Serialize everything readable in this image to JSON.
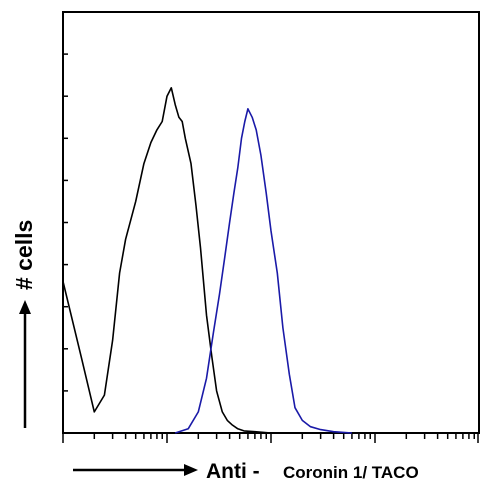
{
  "chart_data": {
    "type": "line",
    "title": "",
    "ylabel": "# cells",
    "xlabel_prefix": "Anti -",
    "xlabel_target": "Coronin 1/ TACO",
    "x_scale": "log",
    "xlim": [
      1,
      10000
    ],
    "ylim": [
      0,
      100
    ],
    "grid": false,
    "legend": "none",
    "series": [
      {
        "color": "#000000",
        "x": [
          1,
          1.5,
          2,
          2.5,
          3,
          3.5,
          4,
          5,
          6,
          7,
          8,
          9,
          10,
          11,
          12,
          13,
          14,
          15,
          17,
          19,
          21,
          24,
          27,
          30,
          34,
          38,
          42,
          48,
          55,
          70,
          100
        ],
        "y": [
          36,
          18,
          5,
          9,
          22,
          38,
          46,
          55,
          64,
          69,
          72,
          74,
          80,
          82,
          78,
          75,
          74,
          70,
          64,
          54,
          44,
          28,
          18,
          10,
          5,
          3,
          2,
          1,
          0.5,
          0.3,
          0
        ]
      },
      {
        "color": "#1a1aa8",
        "x": [
          12,
          16,
          20,
          24,
          28,
          32,
          36,
          40,
          44,
          48,
          52,
          56,
          60,
          66,
          72,
          80,
          90,
          100,
          115,
          130,
          150,
          170,
          200,
          240,
          300,
          400,
          600
        ],
        "y": [
          0,
          1,
          5,
          13,
          24,
          33,
          42,
          50,
          57,
          63,
          70,
          74,
          77,
          75,
          72,
          66,
          57,
          48,
          38,
          25,
          14,
          6,
          3,
          1.5,
          0.8,
          0.3,
          0
        ]
      }
    ]
  }
}
